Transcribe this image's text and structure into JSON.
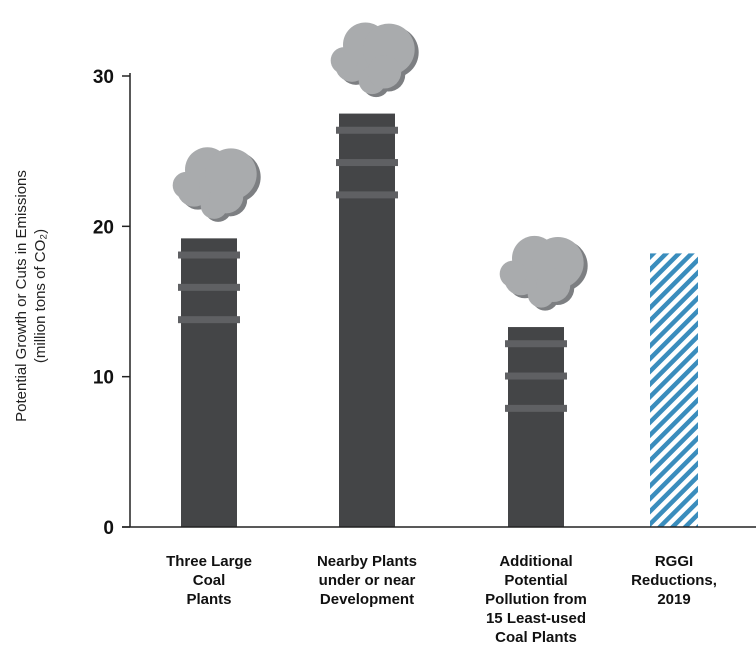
{
  "chart_data": {
    "type": "bar",
    "categories": [
      [
        "Three Large",
        "Coal",
        "Plants"
      ],
      [
        "Nearby Plants",
        "under or near",
        "Development"
      ],
      [
        "Additional",
        "Potential",
        "Pollution from",
        "15 Least-used",
        "Coal Plants"
      ],
      [
        "RGGI",
        "Reductions,",
        "2019"
      ]
    ],
    "values": [
      19.2,
      27.5,
      13.3,
      18.2
    ],
    "bar_styles": [
      "smokestack",
      "smokestack",
      "smokestack",
      "hatched"
    ],
    "ylabel": [
      "Potential Growth or Cuts in Emissions",
      "(million tons of CO₂)"
    ],
    "ylim": [
      0,
      30
    ],
    "yticks": [
      0,
      10,
      20,
      30
    ],
    "grid": false,
    "colors": {
      "stack": "#444547",
      "stack_band": "#5f6063",
      "cloud": "#a9abad",
      "cloud_shadow": "#7d7f82",
      "hatch_bg": "#ffffff",
      "hatch_line": "#3a8dbd",
      "axis": "#222222"
    }
  }
}
